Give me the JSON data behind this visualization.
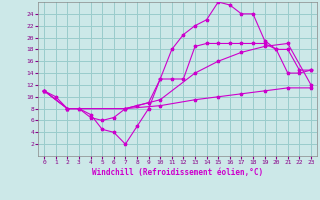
{
  "background_color": "#cce8e8",
  "grid_color": "#99cccc",
  "line_color": "#cc00cc",
  "xlabel": "Windchill (Refroidissement éolien,°C)",
  "xlim": [
    -0.5,
    23.5
  ],
  "ylim": [
    0,
    26
  ],
  "xticks": [
    0,
    1,
    2,
    3,
    4,
    5,
    6,
    7,
    8,
    9,
    10,
    11,
    12,
    13,
    14,
    15,
    16,
    17,
    18,
    19,
    20,
    21,
    22,
    23
  ],
  "yticks": [
    2,
    4,
    6,
    8,
    10,
    12,
    14,
    16,
    18,
    20,
    22,
    24
  ],
  "curve1_x": [
    0,
    1,
    2,
    3,
    4,
    5,
    6,
    7,
    8,
    9,
    10,
    11,
    12,
    13,
    14,
    15,
    16,
    17,
    18,
    19,
    20,
    21,
    22,
    23
  ],
  "curve1_y": [
    11,
    10,
    8,
    8,
    7,
    4.5,
    4,
    2,
    5,
    8,
    13,
    18,
    20.5,
    22,
    23,
    26,
    25.5,
    24,
    24,
    19.5,
    18,
    14,
    14,
    14.5
  ],
  "curve2_x": [
    0,
    2,
    3,
    4,
    5,
    6,
    7,
    8,
    9,
    10,
    11,
    12,
    13,
    14,
    15,
    16,
    17,
    18,
    19,
    20,
    21,
    22,
    23
  ],
  "curve2_y": [
    11,
    8,
    8,
    6.5,
    6,
    6.5,
    8,
    8.5,
    9,
    13,
    13,
    13,
    18.5,
    19,
    19,
    19,
    19,
    19,
    19,
    18,
    18,
    14.5,
    14.5
  ],
  "curve3_x": [
    0,
    2,
    7,
    10,
    13,
    15,
    17,
    19,
    21,
    23
  ],
  "curve3_y": [
    11,
    8,
    8,
    9.5,
    14,
    16,
    17.5,
    18.5,
    19,
    12
  ],
  "curve4_x": [
    0,
    2,
    7,
    10,
    13,
    15,
    17,
    19,
    21,
    23
  ],
  "curve4_y": [
    11,
    8,
    8,
    8.5,
    9.5,
    10,
    10.5,
    11,
    11.5,
    11.5
  ]
}
